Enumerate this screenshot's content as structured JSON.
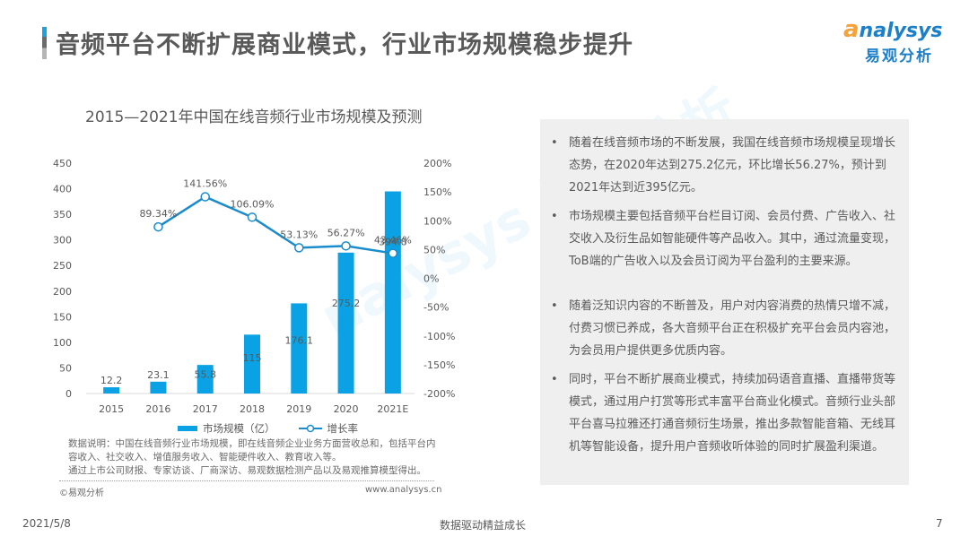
{
  "header": {
    "title": "音频平台不断扩展商业模式，行业市场规模稳步提升",
    "logo_en": "nalysys",
    "logo_en_initial": "a",
    "logo_cn": "易观分析"
  },
  "chart": {
    "title": "2015—2021年中国在线音频行业市场规模及预测",
    "legend": {
      "bar_label": "市场规模（亿）",
      "line_label": "增长率"
    },
    "notes": [
      "数据说明：中国在线音频行业市场规模，即在线音频企业业务方面营收总和，包括平台内容收入、社交收入、增值服务收入、智能硬件收入、教育收入等。",
      "通过上市公司财报、专家访谈、厂商深访、易观数据检测产品以及易观推算模型得出。"
    ],
    "copyright": "©易观分析",
    "website": "www.analysys.cn",
    "watermark": "nalysys 易观分析"
  },
  "chart_data": {
    "type": "bar",
    "title": "2015—2021年中国在线音频行业市场规模及预测",
    "categories": [
      "2015",
      "2016",
      "2017",
      "2018",
      "2019",
      "2020",
      "2021E"
    ],
    "series": [
      {
        "name": "市场规模（亿）",
        "type": "bar",
        "axis": "left",
        "color": "#0aa2e4",
        "values": [
          12.2,
          23.1,
          55.8,
          115,
          176.1,
          275.2,
          394.8
        ],
        "labels": [
          "12.2",
          "23.1",
          "55.8",
          "115",
          "176.1",
          "275.2",
          "394.8"
        ]
      },
      {
        "name": "增长率",
        "type": "line",
        "axis": "right",
        "color": "#1a8ccc",
        "values": [
          null,
          89.34,
          141.56,
          106.09,
          53.13,
          56.27,
          43.46
        ],
        "labels": [
          "",
          "89.34%",
          "141.56%",
          "106.09%",
          "53.13%",
          "56.27%",
          "43.46%"
        ]
      }
    ],
    "y_left": {
      "ylim": [
        0,
        450
      ],
      "ticks": [
        "0",
        "50",
        "100",
        "150",
        "200",
        "250",
        "300",
        "350",
        "400",
        "450"
      ]
    },
    "y_right": {
      "ylim": [
        -200,
        200
      ],
      "ticks": [
        "-200%",
        "-150%",
        "-100%",
        "-50%",
        "0%",
        "50%",
        "100%",
        "150%",
        "200%"
      ]
    },
    "xlabel": "",
    "ylabel": "",
    "grid": false,
    "legend_position": "bottom"
  },
  "panel": {
    "bullet_symbol": "•",
    "bullets": [
      "随着在线音频市场的不断发展，我国在线音频市场规模呈现增长态势，在2020年达到275.2亿元，环比增长56.27%，预计到2021年达到近395亿元。",
      "市场规模主要包括音频平台栏目订阅、会员付费、广告收入、社交收入及衍生品如智能硬件等产品收入。其中，通过流量变现，ToB端的广告收入以及会员订阅为平台盈利的主要来源。",
      "随着泛知识内容的不断普及，用户对内容消费的热情只增不减，付费习惯已养成，各大音频平台正在积极扩充平台会员内容池，为会员用户提供更多优质内容。",
      "同时，平台不断扩展商业模式，持续加码语音直播、直播带货等模式，通过用户打赏等形式丰富平台商业化模式。音频行业头部平台喜马拉雅还打通音频衍生场景，推出多款智能音箱、无线耳机等智能设备，提升用户音频收听体验的同时扩展盈利渠道。"
    ]
  },
  "footer": {
    "date": "2021/5/8",
    "slogan": "数据驱动精益成长",
    "page": "7"
  }
}
